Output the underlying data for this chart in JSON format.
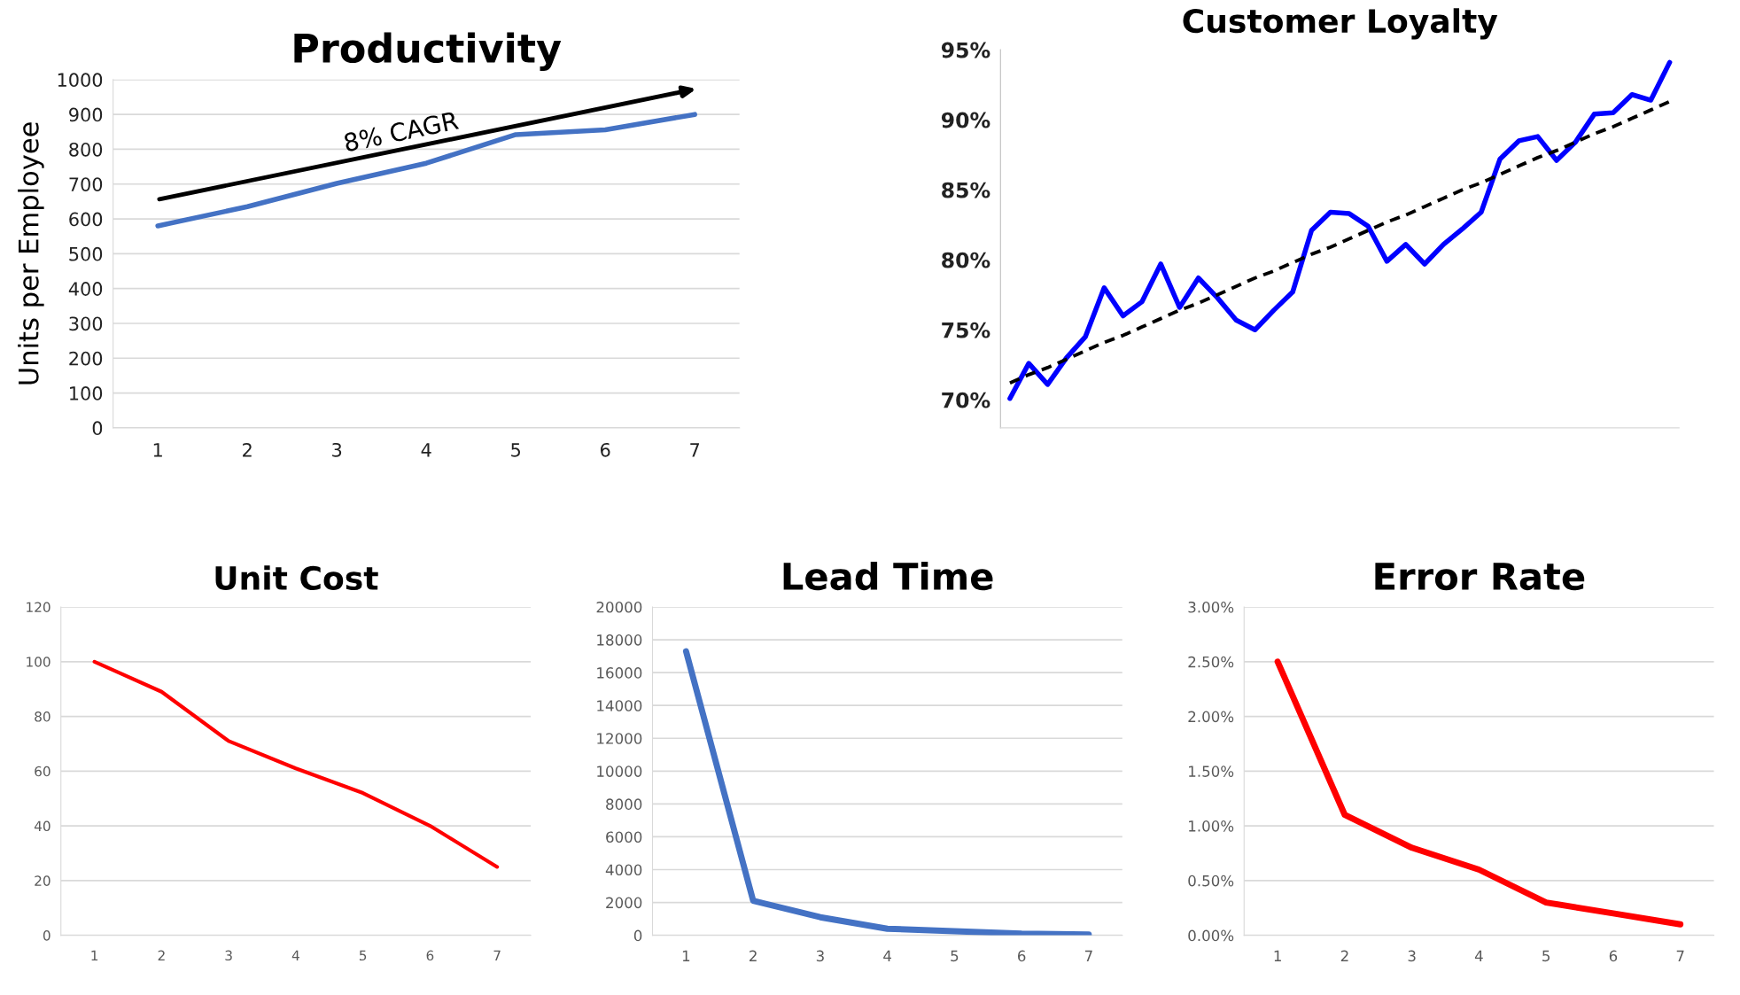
{
  "chart_data": [
    {
      "type": "line",
      "title": "Productivity",
      "ylabel": "Units per Employee",
      "categories": [
        "1",
        "2",
        "3",
        "4",
        "5",
        "6",
        "7"
      ],
      "series": [
        {
          "color": "#4472c4",
          "values": [
            580,
            635,
            702,
            760,
            842,
            856,
            900
          ]
        }
      ],
      "ylim": [
        0,
        1000
      ],
      "yticks": [
        0,
        100,
        200,
        300,
        400,
        500,
        600,
        700,
        800,
        900,
        1000
      ],
      "grid": "y",
      "annotations": [
        "8% CAGR"
      ]
    },
    {
      "type": "line",
      "title": "Customer Loyalty",
      "categories": [
        null,
        null,
        null,
        null,
        null,
        null,
        null,
        null,
        null,
        null,
        null,
        null,
        null,
        null,
        null,
        null,
        null,
        null,
        null,
        null,
        null,
        null,
        null,
        null,
        null,
        null,
        null,
        null,
        null,
        null,
        null,
        null,
        null,
        null,
        null,
        null
      ],
      "series": [
        {
          "color": "#0000ff",
          "values": [
            70.1,
            72.6,
            71.1,
            73.0,
            74.5,
            78.0,
            76.0,
            77.0,
            79.7,
            76.6,
            78.7,
            77.3,
            75.7,
            75.0,
            76.4,
            77.7,
            82.1,
            83.4,
            83.3,
            82.4,
            79.9,
            81.1,
            79.7,
            81.1,
            82.2,
            83.4,
            87.2,
            88.5,
            88.8,
            87.1,
            88.4,
            90.4,
            90.5,
            91.8,
            91.4,
            94.1
          ]
        },
        {
          "type": "line",
          "color": "#000000",
          "line_style": "dashed",
          "values": [
            71.2,
            71.8,
            72.3,
            72.9,
            73.5,
            74.1,
            74.6,
            75.2,
            75.8,
            76.4,
            76.9,
            77.5,
            78.1,
            78.7,
            79.2,
            79.8,
            80.4,
            80.9,
            81.5,
            82.1,
            82.7,
            83.2,
            83.8,
            84.4,
            85.0,
            85.5,
            86.1,
            86.7,
            87.3,
            87.8,
            88.4,
            89.0,
            89.5,
            90.1,
            90.7,
            91.3
          ]
        }
      ],
      "ylim": [
        68,
        95
      ],
      "yticks": [
        {
          "value": 70,
          "label": "70%"
        },
        {
          "value": 75,
          "label": "75%"
        },
        {
          "value": 80,
          "label": "80%"
        },
        {
          "value": 85,
          "label": "85%"
        },
        {
          "value": 90,
          "label": "90%"
        },
        {
          "value": 95,
          "label": "95%"
        }
      ],
      "tick_labels": "y"
    },
    {
      "type": "line",
      "title": "Unit Cost",
      "categories": [
        "1",
        "2",
        "3",
        "4",
        "5",
        "6",
        "7"
      ],
      "series": [
        {
          "color": "#ff0000",
          "values": [
            100,
            89,
            71,
            61,
            52,
            40,
            25
          ]
        }
      ],
      "ylim": [
        0,
        120
      ],
      "yticks": [
        0,
        20,
        40,
        60,
        80,
        100,
        120
      ],
      "grid": "y"
    },
    {
      "type": "line",
      "title": "Lead Time",
      "categories": [
        "1",
        "2",
        "3",
        "4",
        "5",
        "6",
        "7"
      ],
      "series": [
        {
          "color": "#4472c4",
          "values": [
            17300,
            2100,
            1100,
            400,
            250,
            100,
            50
          ]
        }
      ],
      "ylim": [
        0,
        20000
      ],
      "yticks": [
        0,
        2000,
        4000,
        6000,
        8000,
        10000,
        12000,
        14000,
        16000,
        18000,
        20000
      ],
      "grid": "y"
    },
    {
      "type": "line",
      "title": "Error Rate",
      "categories": [
        "1",
        "2",
        "3",
        "4",
        "5",
        "6",
        "7"
      ],
      "series": [
        {
          "color": "#ff0000",
          "values": [
            2.5,
            1.1,
            0.8,
            0.6,
            0.3,
            0.2,
            0.1
          ]
        }
      ],
      "ylim": [
        0,
        3
      ],
      "yticks": [
        {
          "value": 0,
          "label": "0.00%"
        },
        {
          "value": 0.5,
          "label": "0.50%"
        },
        {
          "value": 1,
          "label": "1.00%"
        },
        {
          "value": 1.5,
          "label": "1.50%"
        },
        {
          "value": 2,
          "label": "2.00%"
        },
        {
          "value": 2.5,
          "label": "2.50%"
        },
        {
          "value": 3,
          "label": "3.00%"
        }
      ],
      "grid": "y"
    }
  ]
}
